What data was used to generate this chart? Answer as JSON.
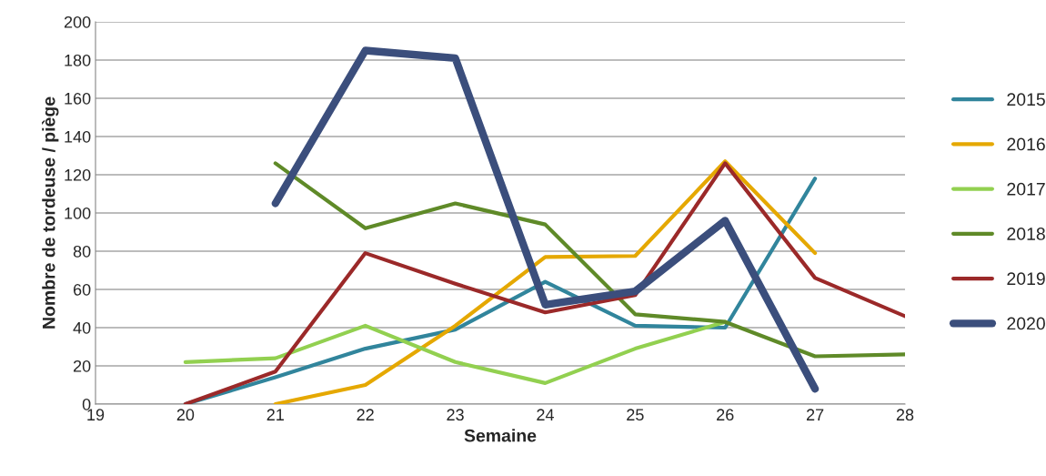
{
  "chart_data": {
    "type": "line",
    "xlabel": "Semaine",
    "ylabel": "Nombre de tordeuse / piège",
    "xlim": [
      19,
      28
    ],
    "xticks": [
      19,
      20,
      21,
      22,
      23,
      24,
      25,
      26,
      27,
      28
    ],
    "ylim": [
      0,
      200
    ],
    "yticks": [
      0,
      20,
      40,
      60,
      80,
      100,
      120,
      140,
      160,
      180,
      200
    ],
    "grid": "y",
    "legend": "right",
    "marker": "none",
    "line_style": "solid",
    "series": [
      {
        "name": "2015",
        "color": "#31859c",
        "x": [
          20,
          21,
          22,
          23,
          24,
          25,
          26,
          27
        ],
        "values": [
          0,
          14,
          29,
          39,
          64,
          41,
          40,
          118
        ]
      },
      {
        "name": "2016",
        "color": "#e5a800",
        "x": [
          21,
          22,
          23,
          24,
          25,
          26,
          27
        ],
        "values": [
          0,
          10,
          41,
          77,
          77.5,
          127,
          79
        ]
      },
      {
        "name": "2017",
        "color": "#92d050",
        "x": [
          20,
          21,
          22,
          23,
          24,
          25,
          26
        ],
        "values": [
          22,
          24,
          41,
          22,
          11,
          29,
          43
        ]
      },
      {
        "name": "2018",
        "color": "#5f8a28",
        "x": [
          21,
          22,
          23,
          24,
          25,
          26,
          27,
          28
        ],
        "values": [
          126,
          92,
          105,
          94,
          47,
          43,
          25,
          26
        ]
      },
      {
        "name": "2019",
        "color": "#9b2929",
        "x": [
          20,
          21,
          22,
          23,
          24,
          25,
          26,
          27,
          28
        ],
        "values": [
          0,
          17,
          79,
          63,
          48,
          57,
          126,
          66,
          46
        ]
      },
      {
        "name": "2020",
        "color": "#3b4e7c",
        "x": [
          21,
          22,
          23,
          24,
          25,
          26,
          27
        ],
        "values": [
          105,
          185,
          181,
          52,
          59,
          96,
          8
        ]
      }
    ]
  }
}
